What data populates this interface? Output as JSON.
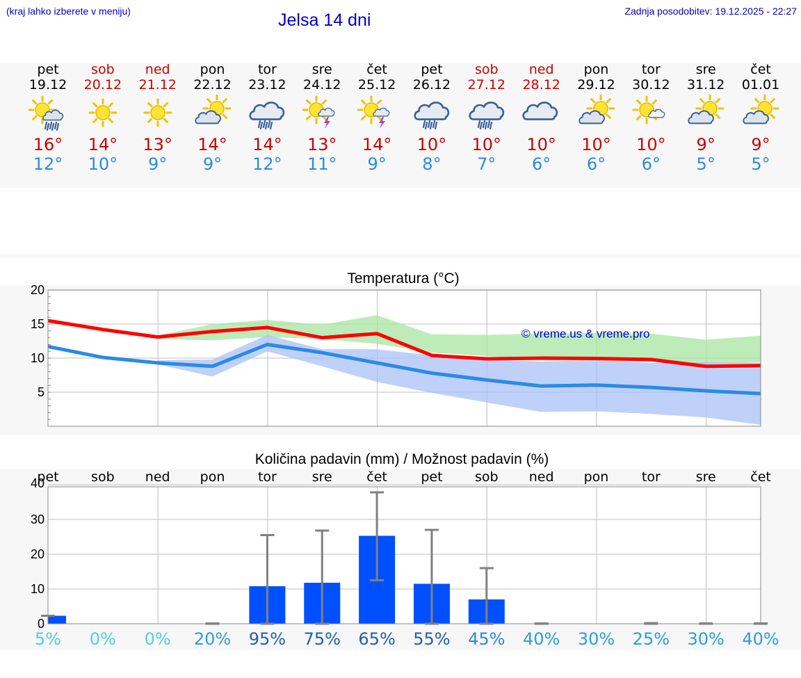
{
  "header": {
    "hint": "(kraj lahko izberete v meniju)",
    "title": "Jelsa 14 dni",
    "updated": "Zadnja posodobitev: 19.12.2025 - 22:27"
  },
  "colors": {
    "header_text": "#0000cc",
    "max_temp": "#cc0000",
    "min_temp": "#2b8ae6",
    "max_line": "#ff0000",
    "min_line": "#2b8ae6",
    "max_band": "#a8e6a1",
    "min_band": "#a9c1f5",
    "bar": "#0050ff",
    "watermark": "#0000cc"
  },
  "days": [
    {
      "dow": "pet",
      "date": "19.12",
      "weekend": false,
      "icon": "sun-cloud-rain-icon",
      "tmax": "16°",
      "tmin": "12°"
    },
    {
      "dow": "sob",
      "date": "20.12",
      "weekend": true,
      "icon": "sun-icon",
      "tmax": "14°",
      "tmin": "10°"
    },
    {
      "dow": "ned",
      "date": "21.12",
      "weekend": true,
      "icon": "sun-icon",
      "tmax": "13°",
      "tmin": "9°"
    },
    {
      "dow": "pon",
      "date": "22.12",
      "weekend": false,
      "icon": "partly-cloudy-icon",
      "tmax": "14°",
      "tmin": "9°"
    },
    {
      "dow": "tor",
      "date": "23.12",
      "weekend": false,
      "icon": "cloud-rain-icon",
      "tmax": "14°",
      "tmin": "12°"
    },
    {
      "dow": "sre",
      "date": "24.12",
      "weekend": false,
      "icon": "sun-thunder-icon",
      "tmax": "13°",
      "tmin": "11°"
    },
    {
      "dow": "čet",
      "date": "25.12",
      "weekend": false,
      "icon": "sun-thunder-icon",
      "tmax": "14°",
      "tmin": "9°"
    },
    {
      "dow": "pet",
      "date": "26.12",
      "weekend": false,
      "icon": "cloud-rain-icon",
      "tmax": "10°",
      "tmin": "8°"
    },
    {
      "dow": "sob",
      "date": "27.12",
      "weekend": true,
      "icon": "cloud-rain-icon",
      "tmax": "10°",
      "tmin": "7°"
    },
    {
      "dow": "ned",
      "date": "28.12",
      "weekend": true,
      "icon": "cloudy-icon",
      "tmax": "10°",
      "tmin": "6°"
    },
    {
      "dow": "pon",
      "date": "29.12",
      "weekend": false,
      "icon": "partly-cloudy-icon",
      "tmax": "10°",
      "tmin": "6°"
    },
    {
      "dow": "tor",
      "date": "30.12",
      "weekend": false,
      "icon": "sun-small-cloud-icon",
      "tmax": "10°",
      "tmin": "6°"
    },
    {
      "dow": "sre",
      "date": "31.12",
      "weekend": false,
      "icon": "partly-cloudy-icon",
      "tmax": "9°",
      "tmin": "5°"
    },
    {
      "dow": "čet",
      "date": "01.01",
      "weekend": false,
      "icon": "partly-cloudy-icon",
      "tmax": "9°",
      "tmin": "5°"
    }
  ],
  "chart_data": [
    {
      "type": "line",
      "title": "Temperatura (°C)",
      "watermark": "© vreme.us & vreme.pro",
      "x": [
        0,
        1,
        2,
        3,
        4,
        5,
        6,
        7,
        8,
        9,
        10,
        11,
        12,
        13
      ],
      "ylim": [
        0,
        20
      ],
      "yticks": [
        "20",
        "15",
        "10",
        "5"
      ],
      "yticks_values": [
        20,
        15,
        10,
        5
      ],
      "series": [
        {
          "name": "max",
          "values": [
            15.5,
            14.2,
            13.1,
            13.9,
            14.5,
            13.0,
            13.6,
            10.4,
            9.9,
            10.0,
            9.95,
            9.8,
            8.8,
            8.9
          ]
        },
        {
          "name": "min",
          "values": [
            11.7,
            10.1,
            9.3,
            8.8,
            12.0,
            10.8,
            9.3,
            7.8,
            6.8,
            5.9,
            6.05,
            5.7,
            5.2,
            4.8
          ]
        }
      ],
      "bands": [
        {
          "name": "max_range",
          "upper": [
            null,
            null,
            13.3,
            15.0,
            15.6,
            14.9,
            16.3,
            13.5,
            13.4,
            13.6,
            13.7,
            13.6,
            12.7,
            13.3
          ],
          "lower": [
            null,
            null,
            12.8,
            12.6,
            13.1,
            12.8,
            12.1,
            10.8,
            10.3,
            9.7,
            9.6,
            9.5,
            9.2,
            9.4
          ]
        },
        {
          "name": "min_range",
          "upper": [
            null,
            null,
            9.7,
            9.8,
            13.4,
            11.3,
            11.3,
            10.4,
            9.8,
            9.5,
            9.7,
            9.3,
            9.4,
            9.3
          ],
          "lower": [
            null,
            null,
            9.1,
            7.3,
            11.0,
            8.8,
            6.5,
            4.9,
            3.5,
            2.1,
            2.2,
            1.8,
            1.3,
            0.2
          ]
        }
      ]
    },
    {
      "type": "bar",
      "title": "Količina padavin (mm) / Možnost padavin (%)",
      "categories": [
        "pet",
        "sob",
        "ned",
        "pon",
        "tor",
        "sre",
        "čet",
        "pet",
        "sob",
        "ned",
        "pon",
        "tor",
        "sre",
        "čet"
      ],
      "ylim": [
        0,
        40
      ],
      "yticks": [
        "40",
        "30",
        "20",
        "10",
        "0"
      ],
      "yticks_values": [
        40,
        30,
        20,
        10,
        0
      ],
      "values": [
        2.3,
        0,
        0,
        0,
        10.8,
        11.8,
        25.3,
        11.5,
        7.0,
        0,
        0,
        0,
        0,
        0
      ],
      "err_low": [
        2.3,
        0,
        0,
        0,
        0,
        0,
        12.5,
        0,
        0,
        0,
        0,
        0,
        0,
        0
      ],
      "err_high": [
        2.3,
        0,
        0,
        0.1,
        25.5,
        26.8,
        37.8,
        27.0,
        16.0,
        0.1,
        0,
        0.2,
        0.1,
        0.1
      ],
      "probabilities": [
        "5%",
        "0%",
        "0%",
        "20%",
        "95%",
        "75%",
        "65%",
        "55%",
        "45%",
        "40%",
        "30%",
        "25%",
        "30%",
        "40%"
      ],
      "probability_colors": [
        "#4dd0e1",
        "#4dd0e1",
        "#4dd0e1",
        "#2b9ee0",
        "#1f5fb0",
        "#1f5fb0",
        "#1f5fb0",
        "#1f5fb0",
        "#2b8ae6",
        "#2b9ee0",
        "#2b9ee0",
        "#2b9ee0",
        "#2b9ee0",
        "#2b9ee0"
      ]
    }
  ]
}
